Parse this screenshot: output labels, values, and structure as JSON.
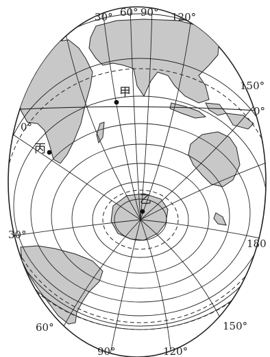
{
  "map": {
    "longitude_labels": {
      "lon30_top": "30°",
      "lon60_top": "60°",
      "lon90_top": "90°",
      "lon120_top": "120°",
      "lon150_right": "150°",
      "lon0_right": "0°",
      "lon0_left": "0°",
      "lon30_left": "30°",
      "lon180_right": "180",
      "lon60_bottom": "60°",
      "lon90_bottom": "90°",
      "lon120_bottom": "120°",
      "lon150_bottom": "150°"
    },
    "points": {
      "jia": "甲",
      "yi": "乙",
      "bing": "丙"
    },
    "colors": {
      "land": "#c8c8c8",
      "line": "#222222",
      "ocean": "#ffffff"
    }
  }
}
